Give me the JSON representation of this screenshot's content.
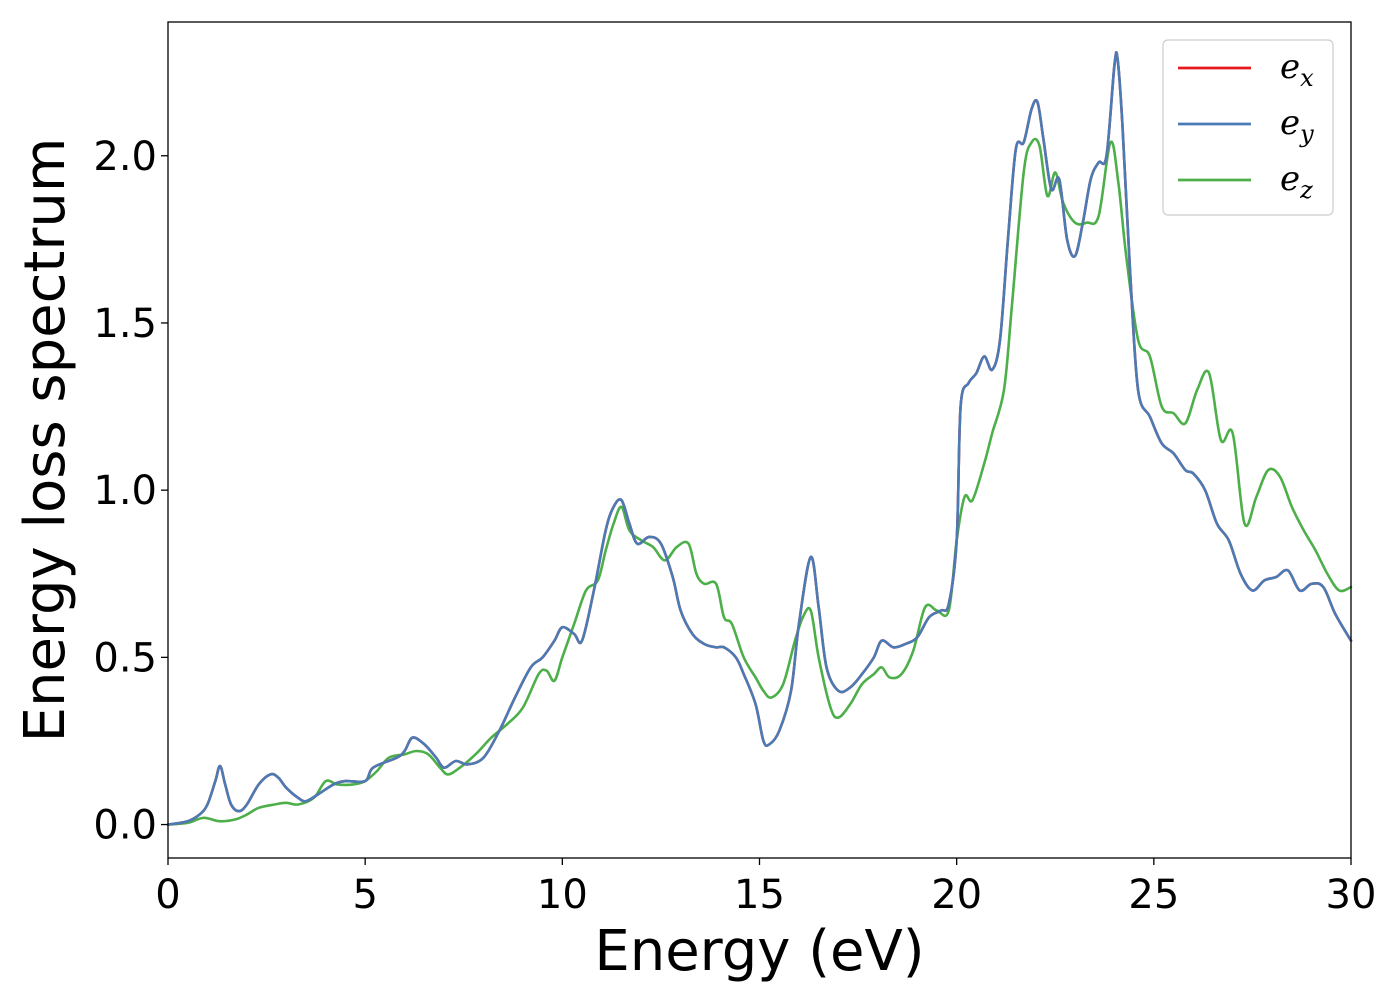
{
  "chart_data": {
    "type": "line",
    "title": "",
    "xlabel": "Energy (eV)",
    "ylabel": "Energy loss spectrum",
    "xlim": [
      0,
      30
    ],
    "ylim": [
      -0.1,
      2.4
    ],
    "xticks": [
      0,
      5,
      10,
      15,
      20,
      25,
      30
    ],
    "xtick_labels": [
      "0",
      "5",
      "10",
      "15",
      "20",
      "25",
      "30"
    ],
    "yticks": [
      0.0,
      0.5,
      1.0,
      1.5,
      2.0
    ],
    "ytick_labels": [
      "0.0",
      "0.5",
      "1.0",
      "1.5",
      "2.0"
    ],
    "grid": false,
    "legend_position": "top-right",
    "series": [
      {
        "name": "e_x",
        "label_base": "e",
        "label_sub": "x",
        "color": "#e41a1c",
        "x": [
          0,
          0.5,
          0.8,
          1.0,
          1.2,
          1.32,
          1.45,
          1.6,
          1.8,
          2.0,
          2.3,
          2.6,
          2.8,
          3.0,
          3.3,
          3.5,
          3.8,
          4.2,
          4.5,
          5.0,
          5.2,
          5.8,
          6.0,
          6.2,
          6.5,
          6.8,
          7.0,
          7.3,
          7.6,
          8.0,
          8.4,
          8.8,
          9.2,
          9.5,
          9.8,
          10.0,
          10.3,
          10.5,
          10.8,
          11.1,
          11.3,
          11.5,
          11.7,
          11.9,
          12.2,
          12.5,
          12.8,
          13.0,
          13.3,
          13.6,
          13.9,
          14.1,
          14.4,
          14.6,
          14.9,
          15.1,
          15.25,
          15.5,
          15.8,
          16.0,
          16.3,
          16.5,
          16.7,
          17.0,
          17.3,
          17.6,
          17.9,
          18.1,
          18.4,
          18.7,
          19.0,
          19.3,
          19.6,
          19.8,
          20.0,
          20.1,
          20.3,
          20.5,
          20.7,
          20.9,
          21.1,
          21.3,
          21.5,
          21.7,
          21.9,
          22.05,
          22.2,
          22.4,
          22.6,
          22.8,
          23.0,
          23.2,
          23.4,
          23.6,
          23.8,
          24.0,
          24.08,
          24.2,
          24.4,
          24.6,
          24.9,
          25.2,
          25.5,
          25.8,
          26.0,
          26.3,
          26.6,
          26.9,
          27.2,
          27.5,
          27.8,
          28.1,
          28.4,
          28.7,
          29.0,
          29.3,
          29.6,
          30.0
        ],
        "y": [
          0.0,
          0.01,
          0.03,
          0.06,
          0.13,
          0.175,
          0.12,
          0.06,
          0.04,
          0.06,
          0.12,
          0.15,
          0.14,
          0.11,
          0.08,
          0.07,
          0.09,
          0.12,
          0.13,
          0.13,
          0.17,
          0.2,
          0.22,
          0.26,
          0.24,
          0.2,
          0.17,
          0.19,
          0.18,
          0.2,
          0.28,
          0.38,
          0.47,
          0.5,
          0.55,
          0.59,
          0.57,
          0.55,
          0.7,
          0.88,
          0.95,
          0.97,
          0.9,
          0.84,
          0.86,
          0.84,
          0.74,
          0.64,
          0.57,
          0.54,
          0.53,
          0.53,
          0.5,
          0.45,
          0.36,
          0.25,
          0.24,
          0.28,
          0.4,
          0.6,
          0.8,
          0.65,
          0.47,
          0.4,
          0.41,
          0.45,
          0.5,
          0.55,
          0.53,
          0.54,
          0.56,
          0.62,
          0.64,
          0.66,
          0.85,
          1.25,
          1.32,
          1.35,
          1.4,
          1.36,
          1.45,
          1.75,
          2.02,
          2.04,
          2.14,
          2.16,
          2.05,
          1.9,
          1.93,
          1.75,
          1.7,
          1.8,
          1.93,
          1.98,
          2.0,
          2.27,
          2.29,
          2.1,
          1.65,
          1.3,
          1.22,
          1.14,
          1.11,
          1.06,
          1.05,
          1.0,
          0.9,
          0.85,
          0.75,
          0.7,
          0.73,
          0.74,
          0.76,
          0.7,
          0.72,
          0.71,
          0.63,
          0.55
        ]
      },
      {
        "name": "e_y",
        "label_base": "e",
        "label_sub": "y",
        "color": "#4a7bb5",
        "x": [
          0,
          0.5,
          0.8,
          1.0,
          1.2,
          1.32,
          1.45,
          1.6,
          1.8,
          2.0,
          2.3,
          2.6,
          2.8,
          3.0,
          3.3,
          3.5,
          3.8,
          4.2,
          4.5,
          5.0,
          5.2,
          5.8,
          6.0,
          6.2,
          6.5,
          6.8,
          7.0,
          7.3,
          7.6,
          8.0,
          8.4,
          8.8,
          9.2,
          9.5,
          9.8,
          10.0,
          10.3,
          10.5,
          10.8,
          11.1,
          11.3,
          11.5,
          11.7,
          11.9,
          12.2,
          12.5,
          12.8,
          13.0,
          13.3,
          13.6,
          13.9,
          14.1,
          14.4,
          14.6,
          14.9,
          15.1,
          15.25,
          15.5,
          15.8,
          16.0,
          16.3,
          16.5,
          16.7,
          17.0,
          17.3,
          17.6,
          17.9,
          18.1,
          18.4,
          18.7,
          19.0,
          19.3,
          19.6,
          19.8,
          20.0,
          20.1,
          20.3,
          20.5,
          20.7,
          20.9,
          21.1,
          21.3,
          21.5,
          21.7,
          21.9,
          22.05,
          22.2,
          22.4,
          22.6,
          22.8,
          23.0,
          23.2,
          23.4,
          23.6,
          23.8,
          24.0,
          24.08,
          24.2,
          24.4,
          24.6,
          24.9,
          25.2,
          25.5,
          25.8,
          26.0,
          26.3,
          26.6,
          26.9,
          27.2,
          27.5,
          27.8,
          28.1,
          28.4,
          28.7,
          29.0,
          29.3,
          29.6,
          30.0
        ],
        "y": [
          0.0,
          0.01,
          0.03,
          0.06,
          0.13,
          0.175,
          0.12,
          0.06,
          0.04,
          0.06,
          0.12,
          0.15,
          0.14,
          0.11,
          0.08,
          0.07,
          0.09,
          0.12,
          0.13,
          0.13,
          0.17,
          0.2,
          0.22,
          0.26,
          0.24,
          0.2,
          0.17,
          0.19,
          0.18,
          0.2,
          0.28,
          0.38,
          0.47,
          0.5,
          0.55,
          0.59,
          0.57,
          0.55,
          0.7,
          0.88,
          0.95,
          0.97,
          0.9,
          0.84,
          0.86,
          0.84,
          0.74,
          0.64,
          0.57,
          0.54,
          0.53,
          0.53,
          0.5,
          0.45,
          0.36,
          0.25,
          0.24,
          0.28,
          0.4,
          0.6,
          0.8,
          0.65,
          0.47,
          0.4,
          0.41,
          0.45,
          0.5,
          0.55,
          0.53,
          0.54,
          0.56,
          0.62,
          0.64,
          0.66,
          0.85,
          1.25,
          1.32,
          1.35,
          1.4,
          1.36,
          1.45,
          1.75,
          2.02,
          2.04,
          2.14,
          2.16,
          2.05,
          1.9,
          1.93,
          1.75,
          1.7,
          1.8,
          1.93,
          1.98,
          2.0,
          2.27,
          2.29,
          2.1,
          1.65,
          1.3,
          1.22,
          1.14,
          1.11,
          1.06,
          1.05,
          1.0,
          0.9,
          0.85,
          0.75,
          0.7,
          0.73,
          0.74,
          0.76,
          0.7,
          0.72,
          0.71,
          0.63,
          0.55
        ]
      },
      {
        "name": "e_z",
        "label_base": "e",
        "label_sub": "z",
        "color": "#4daf4a",
        "x": [
          0,
          0.5,
          0.9,
          1.3,
          1.7,
          2.0,
          2.3,
          2.7,
          3.0,
          3.3,
          3.7,
          4.0,
          4.3,
          4.7,
          5.0,
          5.3,
          5.6,
          6.0,
          6.3,
          6.6,
          6.9,
          7.1,
          7.4,
          7.8,
          8.2,
          8.6,
          9.0,
          9.4,
          9.6,
          9.8,
          10.0,
          10.3,
          10.6,
          10.9,
          11.1,
          11.3,
          11.5,
          11.7,
          12.0,
          12.3,
          12.6,
          12.9,
          13.2,
          13.4,
          13.6,
          13.9,
          14.1,
          14.3,
          14.6,
          14.9,
          15.1,
          15.3,
          15.6,
          15.9,
          16.1,
          16.3,
          16.5,
          16.8,
          17.0,
          17.3,
          17.6,
          17.9,
          18.1,
          18.3,
          18.6,
          18.9,
          19.2,
          19.5,
          19.8,
          20.0,
          20.2,
          20.4,
          20.7,
          20.9,
          21.2,
          21.4,
          21.7,
          21.9,
          22.1,
          22.3,
          22.5,
          22.7,
          23.0,
          23.3,
          23.6,
          23.9,
          24.1,
          24.3,
          24.6,
          24.9,
          25.2,
          25.5,
          25.8,
          26.1,
          26.4,
          26.7,
          27.0,
          27.3,
          27.6,
          27.9,
          28.2,
          28.5,
          28.8,
          29.1,
          29.4,
          29.7,
          30.0
        ],
        "y": [
          0.0,
          0.005,
          0.02,
          0.01,
          0.015,
          0.03,
          0.05,
          0.06,
          0.065,
          0.06,
          0.08,
          0.13,
          0.12,
          0.12,
          0.13,
          0.16,
          0.2,
          0.21,
          0.22,
          0.21,
          0.17,
          0.15,
          0.17,
          0.21,
          0.26,
          0.3,
          0.35,
          0.45,
          0.46,
          0.43,
          0.5,
          0.6,
          0.7,
          0.73,
          0.82,
          0.9,
          0.95,
          0.88,
          0.85,
          0.83,
          0.79,
          0.83,
          0.84,
          0.75,
          0.72,
          0.72,
          0.62,
          0.6,
          0.5,
          0.44,
          0.4,
          0.38,
          0.42,
          0.55,
          0.62,
          0.64,
          0.5,
          0.35,
          0.32,
          0.36,
          0.42,
          0.45,
          0.47,
          0.44,
          0.45,
          0.52,
          0.65,
          0.64,
          0.64,
          0.85,
          0.98,
          0.97,
          1.08,
          1.17,
          1.3,
          1.55,
          1.95,
          2.04,
          2.03,
          1.88,
          1.95,
          1.86,
          1.8,
          1.8,
          1.82,
          2.04,
          1.92,
          1.7,
          1.45,
          1.4,
          1.25,
          1.23,
          1.2,
          1.3,
          1.35,
          1.15,
          1.17,
          0.9,
          0.98,
          1.06,
          1.04,
          0.95,
          0.88,
          0.82,
          0.75,
          0.7,
          0.71
        ]
      }
    ]
  }
}
